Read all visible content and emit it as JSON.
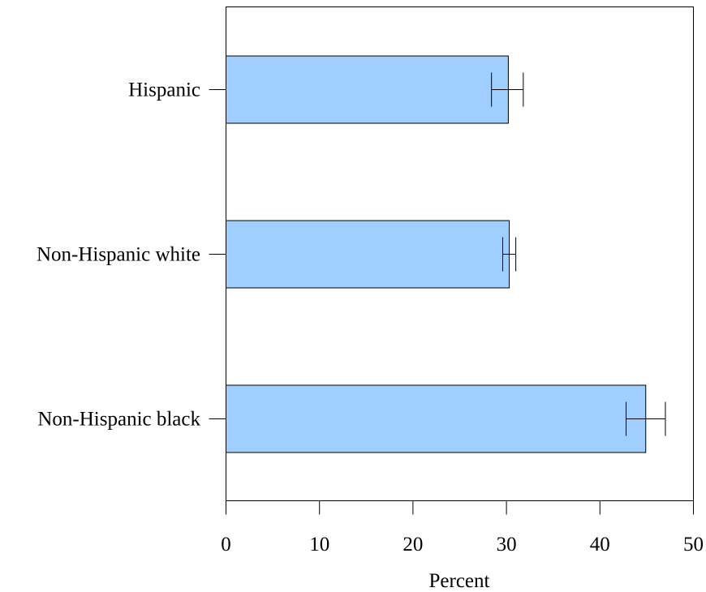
{
  "chart_data": {
    "type": "bar",
    "orientation": "horizontal",
    "title": "",
    "xlabel": "Percent",
    "ylabel": "",
    "xlim": [
      0,
      50
    ],
    "xticks": [
      0,
      10,
      20,
      30,
      40,
      50
    ],
    "xtick_labels": [
      "0",
      "10",
      "20",
      "30",
      "40",
      "50"
    ],
    "categories": [
      "Hispanic",
      "Non-Hispanic white",
      "Non-Hispanic black"
    ],
    "values": [
      30.2,
      30.3,
      44.9
    ],
    "error_bars": [
      {
        "low": 28.4,
        "high": 31.8
      },
      {
        "low": 29.6,
        "high": 31.0
      },
      {
        "low": 42.8,
        "high": 47.0
      }
    ],
    "grid": false,
    "legend": "none",
    "colors": {
      "bar_fill": "#a0cfff",
      "bar_stroke": "#000000",
      "axis": "#000000"
    }
  }
}
